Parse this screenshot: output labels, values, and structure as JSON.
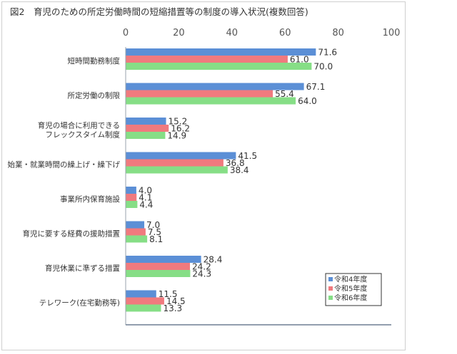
{
  "chart_data": {
    "type": "bar",
    "orientation": "horizontal",
    "title": "図2　育児のための所定労働時間の短縮措置等の制度の導入状況(複数回答)",
    "categories": [
      "短時間勤務制度",
      "所定労働の制限",
      "育児の場合に利用できる\nフレックスタイム制度",
      "始業・就業時間の繰上げ・繰下げ",
      "事業所内保育施設",
      "育児に要する経費の援助措置",
      "育児休業に準ずる措置",
      "テレワーク(在宅勤務等)"
    ],
    "series": [
      {
        "name": "令和4年度",
        "color": "#5b8fd6",
        "values": [
          71.6,
          67.1,
          15.2,
          41.5,
          4.0,
          7.0,
          28.4,
          11.5
        ]
      },
      {
        "name": "令和5年度",
        "color": "#f07a7e",
        "values": [
          61.0,
          55.4,
          16.2,
          36.8,
          4.1,
          7.5,
          24.2,
          14.5
        ]
      },
      {
        "name": "令和6年度",
        "color": "#86de86",
        "values": [
          70.0,
          64.0,
          14.9,
          38.4,
          4.4,
          8.1,
          24.3,
          13.3
        ]
      }
    ],
    "xlim": [
      0,
      100
    ],
    "ticks": [
      0,
      20,
      40,
      60,
      80,
      100
    ],
    "axis_position": "top",
    "grid": false,
    "legend_position": "bottom-right"
  }
}
